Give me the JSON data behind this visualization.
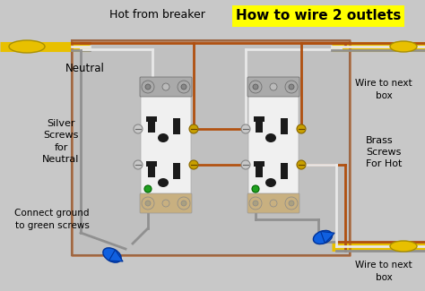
{
  "background_color": "#c8c8c8",
  "title": "How to wire 2 outlets",
  "title_bg": "#ffff00",
  "title_color": "#000000",
  "title_fontsize": 11,
  "label_hot": "Hot from breaker",
  "label_neutral": "Neutral",
  "label_silver": "Silver\nScrews\nfor\nNeutral",
  "label_ground": "Connect ground\nto green screws",
  "label_brass": "Brass\nScrews\nFor Hot",
  "label_wire_next_top": "Wire to next\nbox",
  "label_wire_next_bot": "Wire to next\nbox",
  "wire_hot_color": "#b05010",
  "wire_neutral_color": "#e8e8e8",
  "wire_ground_color": "#909090",
  "cable_jacket_color": "#e8c000",
  "outlet_body_color": "#f0f0f0",
  "outlet_strap_color": "#aaaaaa",
  "outlet_screw_silver": "#c8c8c8",
  "outlet_screw_brass": "#c8a000",
  "outlet_screw_green": "#20a020",
  "outlet_bottom_strap": "#c8b080",
  "blue_connector_color": "#1060e0",
  "text_fontsize": 8.5,
  "box_color": "#c8c8c8",
  "box_border": "#808080"
}
